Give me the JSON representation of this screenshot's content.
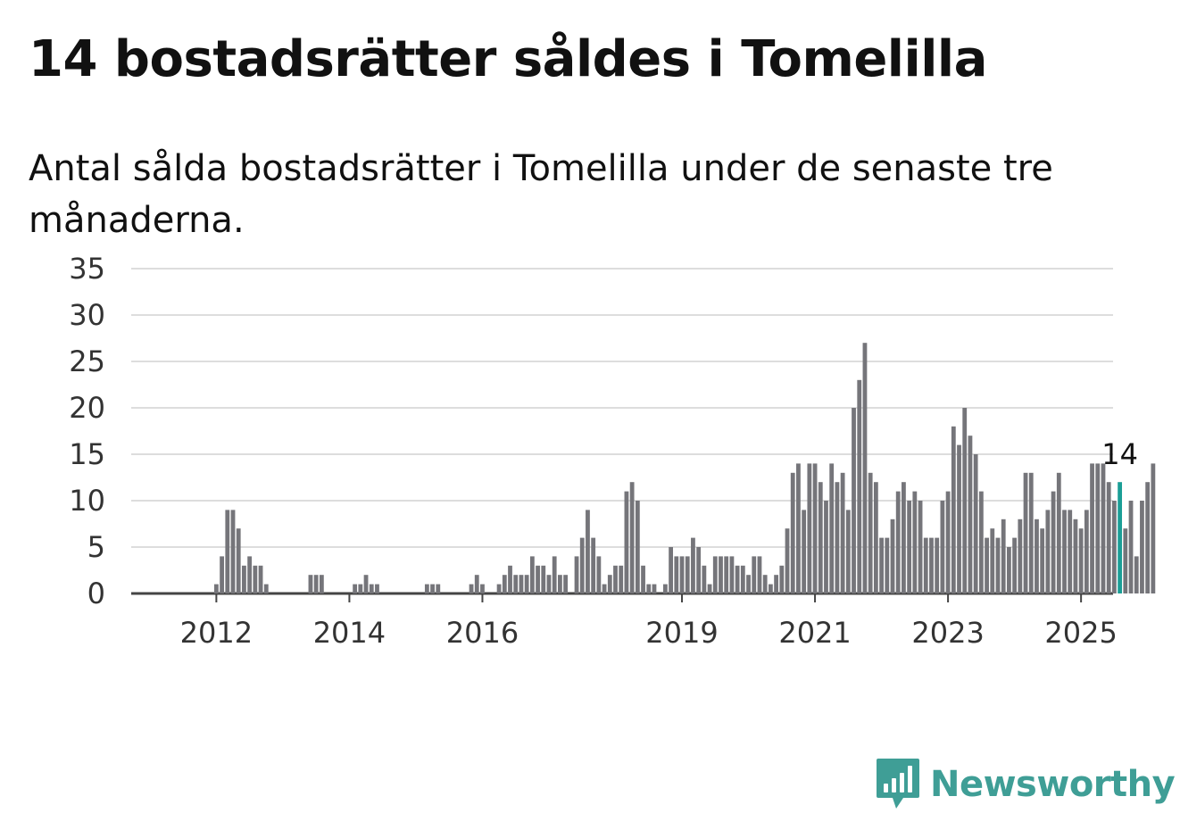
{
  "title": "14 bostadsrätter såldes i Tomelilla",
  "subtitle": "Antal sålda bostadsrätter i Tomelilla under de senaste tre månaderna.",
  "brand": {
    "name": "Newsworthy",
    "color": "#3f9e96",
    "icon": "newsworthy-logo-icon"
  },
  "colors": {
    "bar": "#75757a",
    "highlight": "#1a9e96",
    "grid": "#dddddd",
    "axis": "#444444"
  },
  "chart_data": {
    "type": "bar",
    "title": "14 bostadsrätter såldes i Tomelilla",
    "xlabel": "",
    "ylabel": "",
    "ylim": [
      0,
      35
    ],
    "y_ticks": [
      0,
      5,
      10,
      15,
      20,
      25,
      30,
      35
    ],
    "grid": true,
    "x_ticks": [
      {
        "label": "2012",
        "index": 8
      },
      {
        "label": "2014",
        "index": 32
      },
      {
        "label": "2016",
        "index": 56
      },
      {
        "label": "2019",
        "index": 92
      },
      {
        "label": "2021",
        "index": 116
      },
      {
        "label": "2023",
        "index": 140
      },
      {
        "label": "2025",
        "index": 164
      }
    ],
    "values": [
      0,
      0,
      0,
      0,
      0,
      0,
      0,
      0,
      1,
      4,
      9,
      9,
      7,
      3,
      4,
      3,
      3,
      1,
      0,
      0,
      0,
      0,
      0,
      0,
      0,
      2,
      2,
      2,
      0,
      0,
      0,
      0,
      0,
      1,
      1,
      2,
      1,
      1,
      0,
      0,
      0,
      0,
      0,
      0,
      0,
      0,
      1,
      1,
      1,
      0,
      0,
      0,
      0,
      0,
      1,
      2,
      1,
      0,
      0,
      1,
      2,
      3,
      2,
      2,
      2,
      4,
      3,
      3,
      2,
      4,
      2,
      2,
      0,
      4,
      6,
      9,
      6,
      4,
      1,
      2,
      3,
      3,
      11,
      12,
      10,
      3,
      1,
      1,
      0,
      1,
      5,
      4,
      4,
      4,
      6,
      5,
      3,
      1,
      4,
      4,
      4,
      4,
      3,
      3,
      2,
      4,
      4,
      2,
      1,
      2,
      3,
      7,
      13,
      14,
      9,
      14,
      14,
      12,
      10,
      14,
      12,
      13,
      9,
      20,
      23,
      27,
      13,
      12,
      6,
      6,
      8,
      11,
      12,
      10,
      11,
      10,
      6,
      6,
      6,
      10,
      11,
      18,
      16,
      20,
      17,
      15,
      11,
      6,
      7,
      6,
      8,
      5,
      6,
      8,
      13,
      13,
      8,
      7,
      9,
      11,
      13,
      9,
      9,
      8,
      7,
      9,
      14,
      14,
      14,
      12,
      10,
      12,
      7,
      10,
      4,
      10,
      12,
      14
    ],
    "highlight_index": 171,
    "highlight_label": "14"
  }
}
